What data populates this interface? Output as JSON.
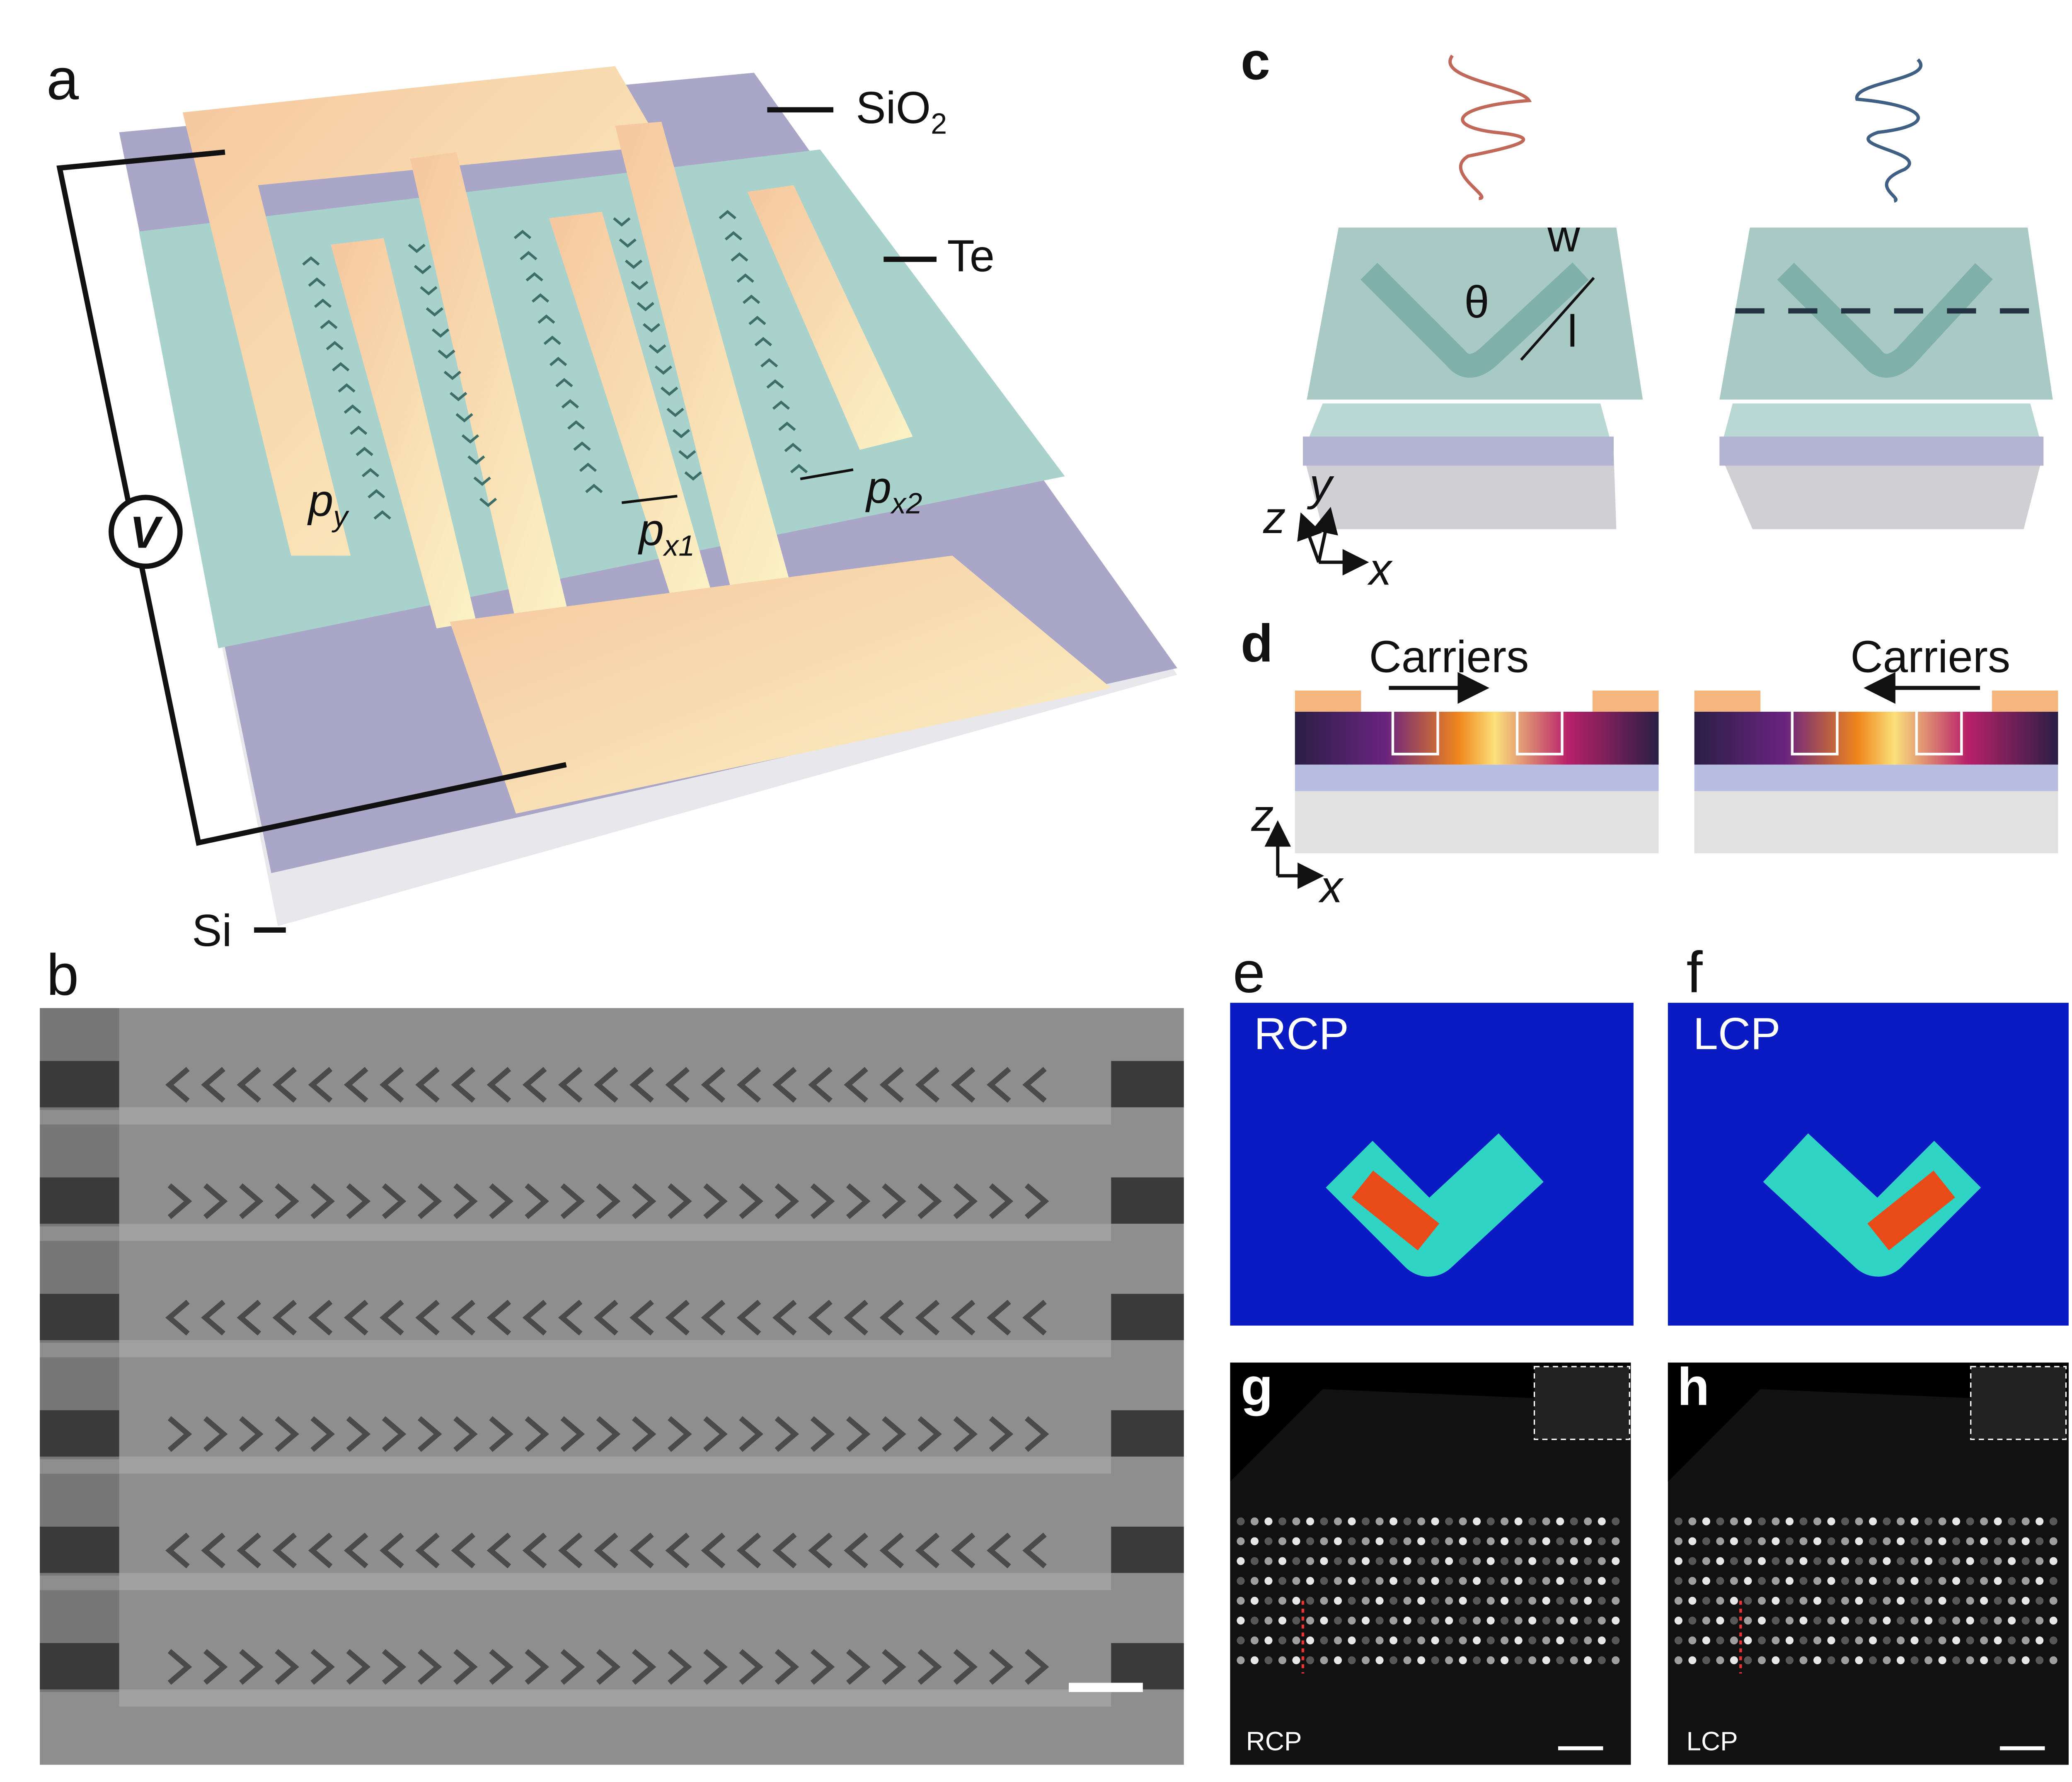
{
  "panels": {
    "a": {
      "letter": "a",
      "sio2": "SiO",
      "sio2_sub": "2",
      "te": "Te",
      "si": "Si",
      "voltage": "V",
      "py": "p",
      "py_sub": "y",
      "px1": "p",
      "px1_sub": "x1",
      "px2": "p",
      "px2_sub": "x2"
    },
    "b": {
      "letter": "b",
      "rows": [
        "left",
        "right",
        "left",
        "right",
        "left",
        "right"
      ]
    },
    "c": {
      "letter": "c",
      "w": "w",
      "theta": "θ",
      "l": "l",
      "axis_z": "z",
      "axis_y": "y",
      "axis_x": "x"
    },
    "d": {
      "letter": "d",
      "carriers_left": "Carriers",
      "carriers_right": "Carriers",
      "axis_z": "z",
      "axis_x": "x"
    },
    "e": {
      "letter": "e",
      "label": "RCP"
    },
    "f": {
      "letter": "f",
      "label": "LCP"
    },
    "g": {
      "letter": "g",
      "label": "RCP"
    },
    "h": {
      "letter": "h",
      "label": "LCP"
    }
  },
  "colors": {
    "sio2": "#a9a6c8",
    "te": "#a9d2cc",
    "electrode": "#f7c9a0",
    "si": "#dcdcdc",
    "rcp": "#c0685a",
    "lcp": "#3f5f85",
    "sem": "#8e8e8e"
  }
}
